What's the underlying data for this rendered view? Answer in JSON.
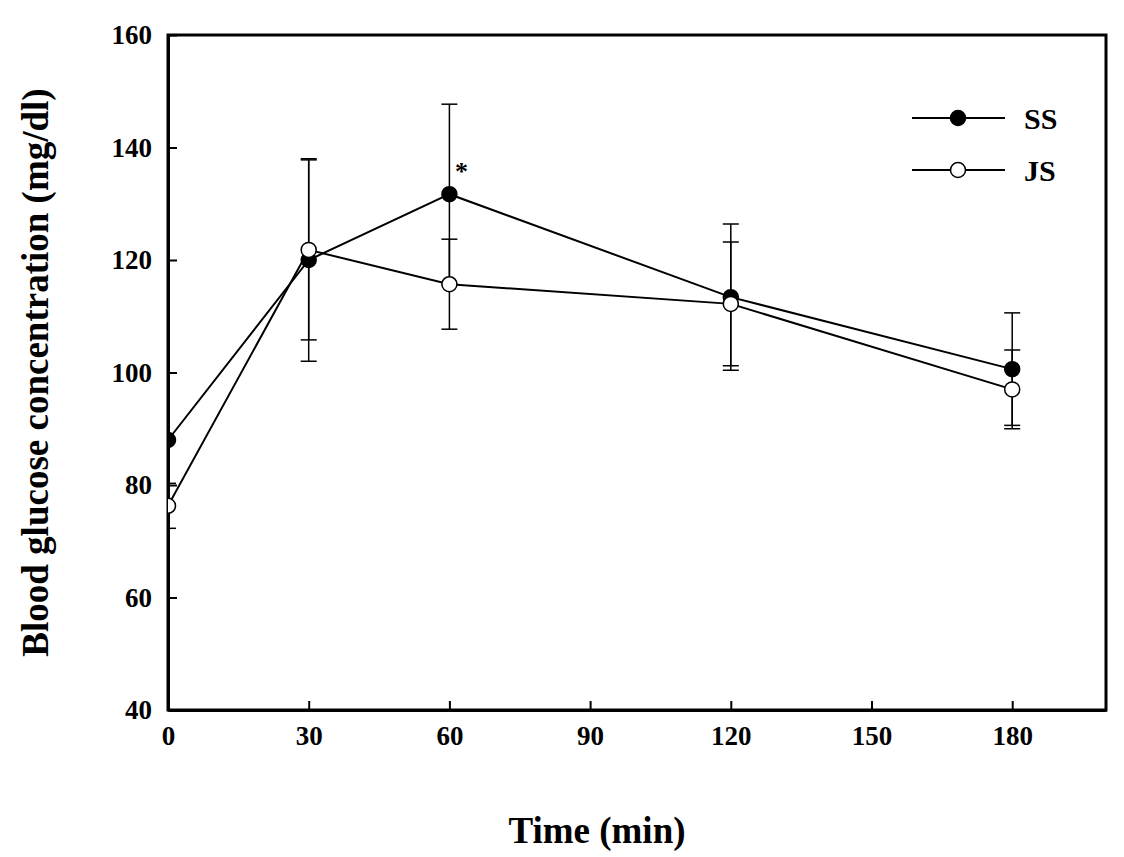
{
  "chart_data": {
    "type": "line",
    "x_label": "Time (min)",
    "y_label": "Blood glucose concentration (mg/dl)",
    "x": [
      0,
      30,
      60,
      120,
      180
    ],
    "xlim": [
      0,
      200
    ],
    "xticks": [
      0,
      30,
      60,
      90,
      120,
      150,
      180
    ],
    "ylim": [
      40,
      160
    ],
    "yticks": [
      40,
      60,
      80,
      100,
      120,
      140,
      160
    ],
    "legend": "upper right",
    "series": [
      {
        "name": "SS",
        "color": "#000000",
        "marker": "filled-circle",
        "line_style": "solid",
        "values": [
          88,
          120,
          131.7,
          113.4,
          100.6
        ],
        "errors": [
          0,
          18,
          16,
          13,
          10
        ]
      },
      {
        "name": "JS",
        "color": "#000000",
        "marker": "open-circle",
        "line_style": "solid",
        "values": [
          76.3,
          121.8,
          115.7,
          112.2,
          97
        ],
        "errors": [
          4,
          16,
          8,
          11,
          7
        ]
      }
    ],
    "annotations": [
      {
        "text": "*",
        "x": 60,
        "y": 131.7
      }
    ]
  }
}
